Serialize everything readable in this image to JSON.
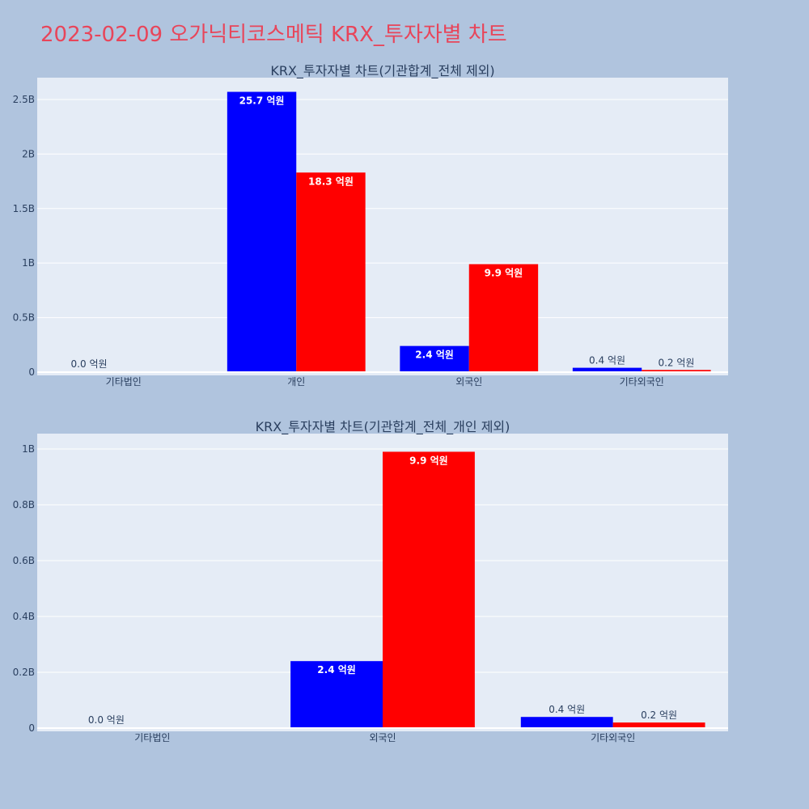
{
  "page": {
    "title": "2023-02-09 오가닉티코스메틱 KRX_투자자별 차트",
    "background": "#b0c4de",
    "title_color": "#e8455a"
  },
  "chart_data": [
    {
      "type": "bar",
      "title": "KRX_투자자별 차트(기관합계_전체 제외)",
      "categories": [
        "기타법인",
        "개인",
        "외국인",
        "기타외국인"
      ],
      "ylim": [
        0,
        2700000000
      ],
      "yticks": [
        0,
        500000000,
        1000000000,
        1500000000,
        2000000000,
        2500000000
      ],
      "ytick_labels": [
        "0",
        "0.5B",
        "1B",
        "1.5B",
        "2B",
        "2.5B"
      ],
      "grid": true,
      "series": [
        {
          "color": "#0000ff",
          "values": [
            1000000,
            2570000000,
            240000000,
            40000000
          ],
          "labels": [
            "0.0 억원",
            "25.7 억원",
            "2.4 억원",
            "0.4 억원"
          ]
        },
        {
          "color": "#ff0000",
          "values": [
            0,
            1830000000,
            990000000,
            20000000
          ],
          "labels": [
            "",
            "18.3 억원",
            "9.9 억원",
            "0.2 억원"
          ]
        }
      ]
    },
    {
      "type": "bar",
      "title": "KRX_투자자별 차트(기관합계_전체_개인 제외)",
      "categories": [
        "기타법인",
        "외국인",
        "기타외국인"
      ],
      "ylim": [
        0,
        1055000000
      ],
      "yticks": [
        0,
        200000000,
        400000000,
        600000000,
        800000000,
        1000000000
      ],
      "ytick_labels": [
        "0",
        "0.2B",
        "0.4B",
        "0.6B",
        "0.8B",
        "1B"
      ],
      "grid": true,
      "series": [
        {
          "color": "#0000ff",
          "values": [
            1000000,
            240000000,
            40000000
          ],
          "labels": [
            "0.0 억원",
            "2.4 억원",
            "0.4 억원"
          ]
        },
        {
          "color": "#ff0000",
          "values": [
            0,
            990000000,
            20000000
          ],
          "labels": [
            "",
            "9.9 억원",
            "0.2 억원"
          ]
        }
      ]
    }
  ]
}
